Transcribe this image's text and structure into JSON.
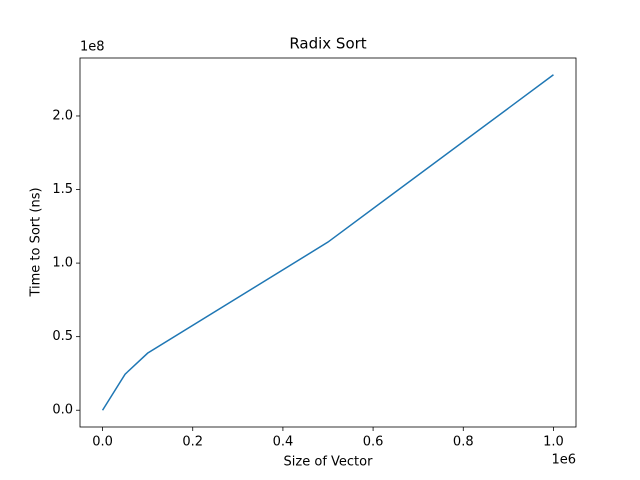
{
  "chart_data": {
    "type": "line",
    "title": "Radix Sort",
    "x_label": "Size of Vector",
    "y_label": "Time to Sort (ns)",
    "x_offset_label": "1e6",
    "y_offset_label": "1e8",
    "x": [
      0,
      50000,
      100000,
      500000,
      1000000
    ],
    "series": [
      {
        "name": "Radix Sort",
        "color": "#1f77b4",
        "values": [
          0,
          24500000,
          38800000,
          114300000,
          228000000
        ]
      }
    ],
    "xlim": [
      -50000,
      1050000
    ],
    "xticks": [
      {
        "value": 0,
        "label": "0.0"
      },
      {
        "value": 200000,
        "label": "0.2"
      },
      {
        "value": 400000,
        "label": "0.4"
      },
      {
        "value": 600000,
        "label": "0.6"
      },
      {
        "value": 800000,
        "label": "0.8"
      },
      {
        "value": 1000000,
        "label": "1.0"
      }
    ],
    "ylim": [
      -11400000,
      239400000
    ],
    "yticks": [
      {
        "value": 0,
        "label": "0.0"
      },
      {
        "value": 50000000,
        "label": "0.5"
      },
      {
        "value": 100000000,
        "label": "1.0"
      },
      {
        "value": 150000000,
        "label": "1.5"
      },
      {
        "value": 200000000,
        "label": "2.0"
      }
    ],
    "grid": false
  }
}
